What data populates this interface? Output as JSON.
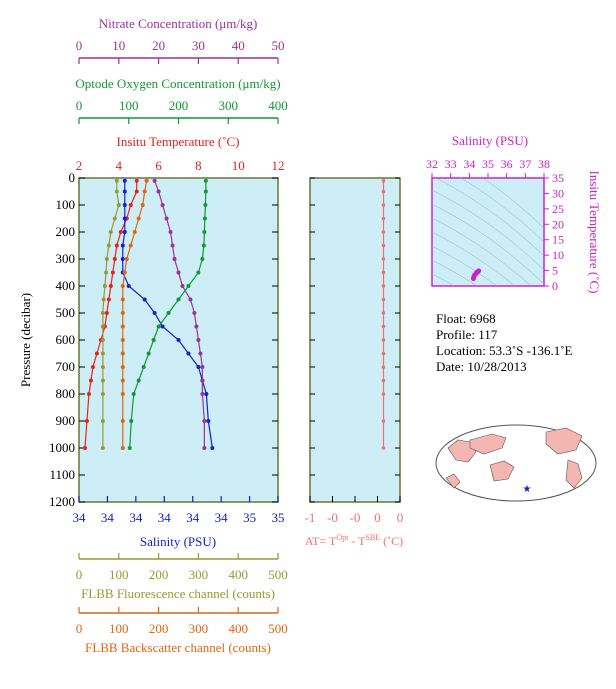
{
  "colors": {
    "nitrate": "#993399",
    "oxygen": "#119933",
    "temperature": "#e8221b",
    "salinity": "#1122cc",
    "fluorescence": "#999933",
    "backscatter": "#dd6611",
    "delta_t": "#f07070",
    "ts_axis": "#cc22cc",
    "panel_bg": "#cdeef7",
    "frame": "#667733"
  },
  "axes": {
    "nitrate": {
      "label": "Nitrate Concentration (μm/kg)",
      "ticks": [
        "0",
        "10",
        "20",
        "30",
        "40",
        "50"
      ]
    },
    "oxygen": {
      "label": "Optode Oxygen Concentration (μm/kg)",
      "ticks": [
        "0",
        "100",
        "200",
        "300",
        "400"
      ]
    },
    "temperature": {
      "label": "Insitu Temperature (˚C)",
      "ticks": [
        "2",
        "4",
        "6",
        "8",
        "10",
        "12"
      ]
    },
    "pressure": {
      "label": "Pressure (decibar)",
      "ticks": [
        "0",
        "100",
        "200",
        "300",
        "400",
        "500",
        "600",
        "700",
        "800",
        "900",
        "1000",
        "1100",
        "1200"
      ]
    },
    "salinity": {
      "label": "Salinity (PSU)",
      "ticks": [
        "34",
        "34",
        "34",
        "34",
        "34",
        "34",
        "35",
        "35"
      ]
    },
    "fluorescence": {
      "label": "FLBB Fluorescence channel (counts)",
      "ticks": [
        "0",
        "100",
        "200",
        "300",
        "400",
        "500"
      ]
    },
    "backscatter": {
      "label": "FLBB Backscatter channel (counts)",
      "ticks": [
        "0",
        "100",
        "200",
        "300",
        "400",
        "500"
      ]
    },
    "delta_t": {
      "label_main": "AT= T",
      "sup1": "Opt",
      "label_mid": " - T",
      "sup2": "SBE",
      "label_end": " (˚C)",
      "ticks": [
        "-1",
        "-0",
        "-0",
        "0",
        "0"
      ]
    },
    "ts_salinity": {
      "label": "Salinity (PSU)",
      "ticks": [
        "32",
        "33",
        "34",
        "35",
        "36",
        "37",
        "38"
      ]
    },
    "ts_temperature": {
      "label": "Insitu Temperature (˚C)",
      "ticks": [
        "0",
        "5",
        "10",
        "15",
        "20",
        "25",
        "30",
        "35"
      ]
    }
  },
  "float_info": {
    "float": "Float:  6968",
    "profile": "Profile:  117",
    "location": "Location:  53.3˚S  -136.1˚E",
    "date": "Date:  10/28/2013"
  },
  "chart_data": [
    {
      "type": "line",
      "title": "",
      "ylabel": "Pressure (decibar)",
      "ylim": [
        1200,
        0
      ],
      "series": [
        {
          "name": "Insitu Temperature",
          "xlim": [
            2,
            12
          ],
          "x": [
            4.9,
            4.9,
            4.6,
            4.4,
            4.1,
            3.9,
            3.8,
            3.7,
            3.6,
            3.5,
            3.4,
            3.3,
            3.1,
            2.9,
            2.7,
            2.6,
            2.5,
            2.4,
            2.3
          ],
          "y": [
            10,
            50,
            100,
            150,
            200,
            250,
            300,
            350,
            400,
            450,
            500,
            550,
            600,
            650,
            700,
            750,
            800,
            900,
            1000
          ]
        },
        {
          "name": "Salinity",
          "xlim": [
            34.0,
            35.0
          ],
          "x": [
            34.23,
            34.23,
            34.23,
            34.23,
            34.23,
            34.22,
            34.22,
            34.22,
            34.25,
            34.33,
            34.38,
            34.42,
            34.5,
            34.55,
            34.6,
            34.62,
            34.64,
            34.65,
            34.67
          ],
          "y": [
            10,
            50,
            100,
            150,
            200,
            250,
            300,
            350,
            400,
            450,
            500,
            550,
            600,
            650,
            700,
            750,
            800,
            900,
            1000
          ]
        },
        {
          "name": "Nitrate Concentration",
          "xlim": [
            0,
            50
          ],
          "x": [
            19,
            20,
            21,
            22,
            23,
            23.5,
            24,
            25,
            26,
            28,
            29,
            29.5,
            30,
            30.5,
            31,
            31,
            31,
            31.5,
            31.5
          ],
          "y": [
            10,
            50,
            100,
            150,
            200,
            250,
            300,
            350,
            400,
            450,
            500,
            550,
            600,
            650,
            700,
            750,
            800,
            900,
            1000
          ]
        },
        {
          "name": "Optode Oxygen Concentration",
          "xlim": [
            0,
            400
          ],
          "x": [
            255,
            255,
            254,
            253,
            252,
            251,
            248,
            240,
            220,
            200,
            180,
            160,
            150,
            140,
            130,
            120,
            110,
            105,
            102
          ],
          "y": [
            10,
            50,
            100,
            150,
            200,
            250,
            300,
            350,
            400,
            450,
            500,
            550,
            600,
            650,
            700,
            750,
            800,
            900,
            1000
          ]
        },
        {
          "name": "FLBB Fluorescence channel",
          "xlim": [
            0,
            500
          ],
          "x": [
            95,
            95,
            100,
            90,
            80,
            75,
            70,
            68,
            65,
            62,
            60,
            60,
            60,
            60,
            60,
            60,
            60,
            60,
            60
          ],
          "y": [
            10,
            50,
            100,
            150,
            200,
            250,
            300,
            350,
            400,
            450,
            500,
            550,
            600,
            650,
            700,
            750,
            800,
            900,
            1000
          ]
        },
        {
          "name": "FLBB Backscatter channel",
          "xlim": [
            0,
            500
          ],
          "x": [
            170,
            165,
            160,
            150,
            140,
            130,
            120,
            115,
            110,
            110,
            110,
            110,
            110,
            110,
            110,
            110,
            110,
            110,
            110
          ],
          "y": [
            10,
            50,
            100,
            150,
            200,
            250,
            300,
            350,
            400,
            450,
            500,
            550,
            600,
            650,
            700,
            750,
            800,
            900,
            1000
          ]
        }
      ]
    },
    {
      "type": "line",
      "title": "",
      "xlabel": "AT= TOpt - TSBE (˚C)",
      "ylim": [
        1200,
        0
      ],
      "series": [
        {
          "name": "AT",
          "xlim": [
            -1,
            0.2
          ],
          "x": [
            -0.02,
            -0.02,
            -0.02,
            -0.02,
            -0.02,
            -0.02,
            -0.02,
            -0.02,
            -0.02,
            -0.02,
            -0.02,
            -0.02,
            -0.02,
            -0.02,
            -0.02,
            -0.02,
            -0.02,
            -0.02,
            -0.02
          ],
          "y": [
            10,
            50,
            100,
            150,
            200,
            250,
            300,
            350,
            400,
            450,
            500,
            550,
            600,
            650,
            700,
            750,
            800,
            900,
            1000
          ]
        }
      ]
    },
    {
      "type": "scatter",
      "title": "",
      "xlabel": "Salinity (PSU)",
      "ylabel": "Insitu Temperature (˚C)",
      "xlim": [
        32,
        38
      ],
      "ylim": [
        0,
        35
      ],
      "series": [
        {
          "name": "TS",
          "x": [
            34.22,
            34.24,
            34.28,
            34.35,
            34.4,
            34.45,
            34.5
          ],
          "y": [
            2.4,
            3.0,
            3.5,
            4.0,
            4.4,
            4.6,
            4.9
          ]
        }
      ]
    }
  ]
}
